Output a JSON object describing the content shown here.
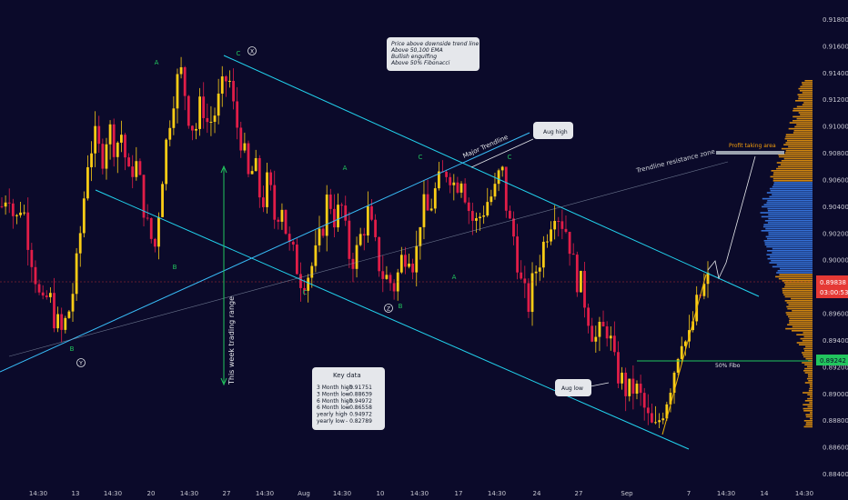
{
  "chart_data": {
    "type": "candlestick",
    "title": "",
    "ylim": [
      0.884,
      0.919
    ],
    "grid": false,
    "price_axis": {
      "ticks": [
        "0.91800",
        "0.91600",
        "0.91400",
        "0.91200",
        "0.91000",
        "0.90800",
        "0.90600",
        "0.90400",
        "0.90200",
        "0.90000",
        "0.89800",
        "0.89600",
        "0.89400",
        "0.89200",
        "0.89000",
        "0.88800",
        "0.88600",
        "0.88400"
      ],
      "tick_values": [
        0.918,
        0.916,
        0.914,
        0.912,
        0.91,
        0.908,
        0.906,
        0.904,
        0.902,
        0.9,
        0.898,
        0.896,
        0.894,
        0.892,
        0.89,
        0.888,
        0.886,
        0.884
      ],
      "current_price": {
        "value": 0.89838,
        "label": "0.89838",
        "countdown": "03:00:53",
        "color": "#e53935"
      },
      "fibo_price": {
        "value": 0.89242,
        "label": "0.89242",
        "color": "#22c55e"
      }
    },
    "time_axis": {
      "labels": [
        "14:30",
        "13",
        "14:30",
        "20",
        "14:30",
        "27",
        "14:30",
        "Aug",
        "14:30",
        "10",
        "14:30",
        "17",
        "14:30",
        "24",
        "27",
        "Sep",
        "7",
        "14:30",
        "14",
        "14:30"
      ]
    },
    "annotations": {
      "wave_labels": [
        {
          "text": "A",
          "price": 0.9145,
          "color": "#22c55e"
        },
        {
          "text": "C",
          "price": 0.9152,
          "color": "#22c55e"
        },
        {
          "text": "B",
          "price": 0.9068,
          "color": "#22c55e"
        },
        {
          "text": "A",
          "price": 0.9078,
          "color": "#22c55e"
        },
        {
          "text": "C",
          "price": 0.9078,
          "color": "#22c55e"
        },
        {
          "text": "C",
          "price": 0.8944,
          "color": "#22c55e"
        },
        {
          "text": "B",
          "price": 0.8995,
          "color": "#22c55e"
        },
        {
          "text": "A",
          "price": 0.8975,
          "color": "#22c55e"
        },
        {
          "text": "C",
          "price": 0.8964,
          "color": "#22c55e"
        },
        {
          "text": "B",
          "price": 0.8985,
          "color": "#22c55e"
        }
      ],
      "circle_labels": [
        {
          "text": "X",
          "price": 0.916
        },
        {
          "text": "Y",
          "price": 0.893
        },
        {
          "text": "Z",
          "price": 0.8963
        }
      ],
      "line_labels": {
        "major_trendline": "Major Trendline",
        "trendline_resistance": "Trendline resistance zone",
        "weekly_range": "This week trading range",
        "fibo": "50% Fibo",
        "profit_taking": "Profit taking area"
      },
      "callouts": {
        "aug_high": "Aug high",
        "aug_low": "Aug low"
      },
      "analysis_box": [
        "Price above downside trend line",
        "Above 50,100 EMA",
        "Bullish engulfing",
        "Above 50% Fibonacci"
      ],
      "key_data": {
        "title": "Key data",
        "rows": [
          {
            "label": "3 Month high",
            "value": "0.91751"
          },
          {
            "label": "3 Month low",
            "value": "0.88639"
          },
          {
            "label": "6 Month high",
            "value": "0.94972"
          },
          {
            "label": "6 Month low",
            "value": "0.86558"
          },
          {
            "label": "yearly high",
            "value": "0.94972"
          },
          {
            "label": "yearly low",
            "value": "0.82789"
          }
        ]
      }
    },
    "candles_ohlc_anchor_path": [
      0.904,
      0.9055,
      0.9025,
      0.9045,
      0.9015,
      0.899,
      0.896,
      0.8975,
      0.8955,
      0.8945,
      0.896,
      0.8985,
      0.903,
      0.908,
      0.909,
      0.9075,
      0.91,
      0.9085,
      0.9095,
      0.906,
      0.9075,
      0.905,
      0.902,
      0.901,
      0.906,
      0.91,
      0.913,
      0.914,
      0.911,
      0.9095,
      0.912,
      0.91,
      0.911,
      0.9125,
      0.914,
      0.9105,
      0.909,
      0.906,
      0.907,
      0.904,
      0.906,
      0.903,
      0.9045,
      0.901,
      0.9,
      0.8985,
      0.899,
      0.9,
      0.902,
      0.905,
      0.903,
      0.904,
      0.9005,
      0.9,
      0.902,
      0.9035,
      0.901,
      0.899,
      0.8985,
      0.898,
      0.9,
      0.901,
      0.8995,
      0.904,
      0.9035,
      0.905,
      0.906,
      0.907,
      0.9055,
      0.9065,
      0.904,
      0.9025,
      0.9035,
      0.9045,
      0.905,
      0.907,
      0.903,
      0.9015,
      0.898,
      0.8965,
      0.899,
      0.9005,
      0.9025,
      0.904,
      0.903,
      0.902,
      0.899,
      0.898,
      0.896,
      0.894,
      0.8945,
      0.895,
      0.892,
      0.891,
      0.89,
      0.8905,
      0.8895,
      0.888,
      0.887,
      0.8885,
      0.89,
      0.892,
      0.8945,
      0.8935,
      0.896,
      0.8975,
      0.8984
    ]
  }
}
